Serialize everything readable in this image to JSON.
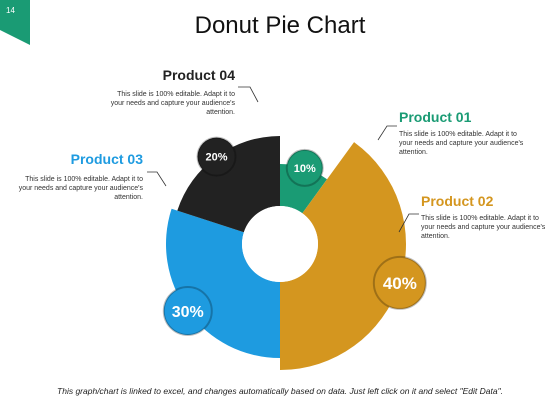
{
  "page_number": "14",
  "footer_note": "This graph/chart is linked to excel, and changes automatically based on data. Just left click on it and select \"Edit Data\".",
  "colors": {
    "product_01": "#1a9b74",
    "product_02": "#d4961f",
    "product_03": "#1e9be0",
    "product_04": "#222222",
    "page_tab": "#1a9b74"
  },
  "chart_data": {
    "type": "pie",
    "title": "Donut Pie Chart",
    "hole": true,
    "categories": [
      "Product 01",
      "Product 02",
      "Product 03",
      "Product 04"
    ],
    "values": [
      10,
      40,
      30,
      20
    ],
    "value_labels": [
      "10%",
      "40%",
      "30%",
      "20%"
    ],
    "descriptions": [
      "This slide is 100% editable. Adapt it to your needs and capture your audience's attention.",
      "This slide is 100% editable. Adapt it to your needs and capture your audience's attention.",
      "This slide is 100% editable. Adapt it to your needs and capture your audience's attention.",
      "This slide is 100% editable. Adapt it to your needs and capture your audience's attention."
    ]
  }
}
